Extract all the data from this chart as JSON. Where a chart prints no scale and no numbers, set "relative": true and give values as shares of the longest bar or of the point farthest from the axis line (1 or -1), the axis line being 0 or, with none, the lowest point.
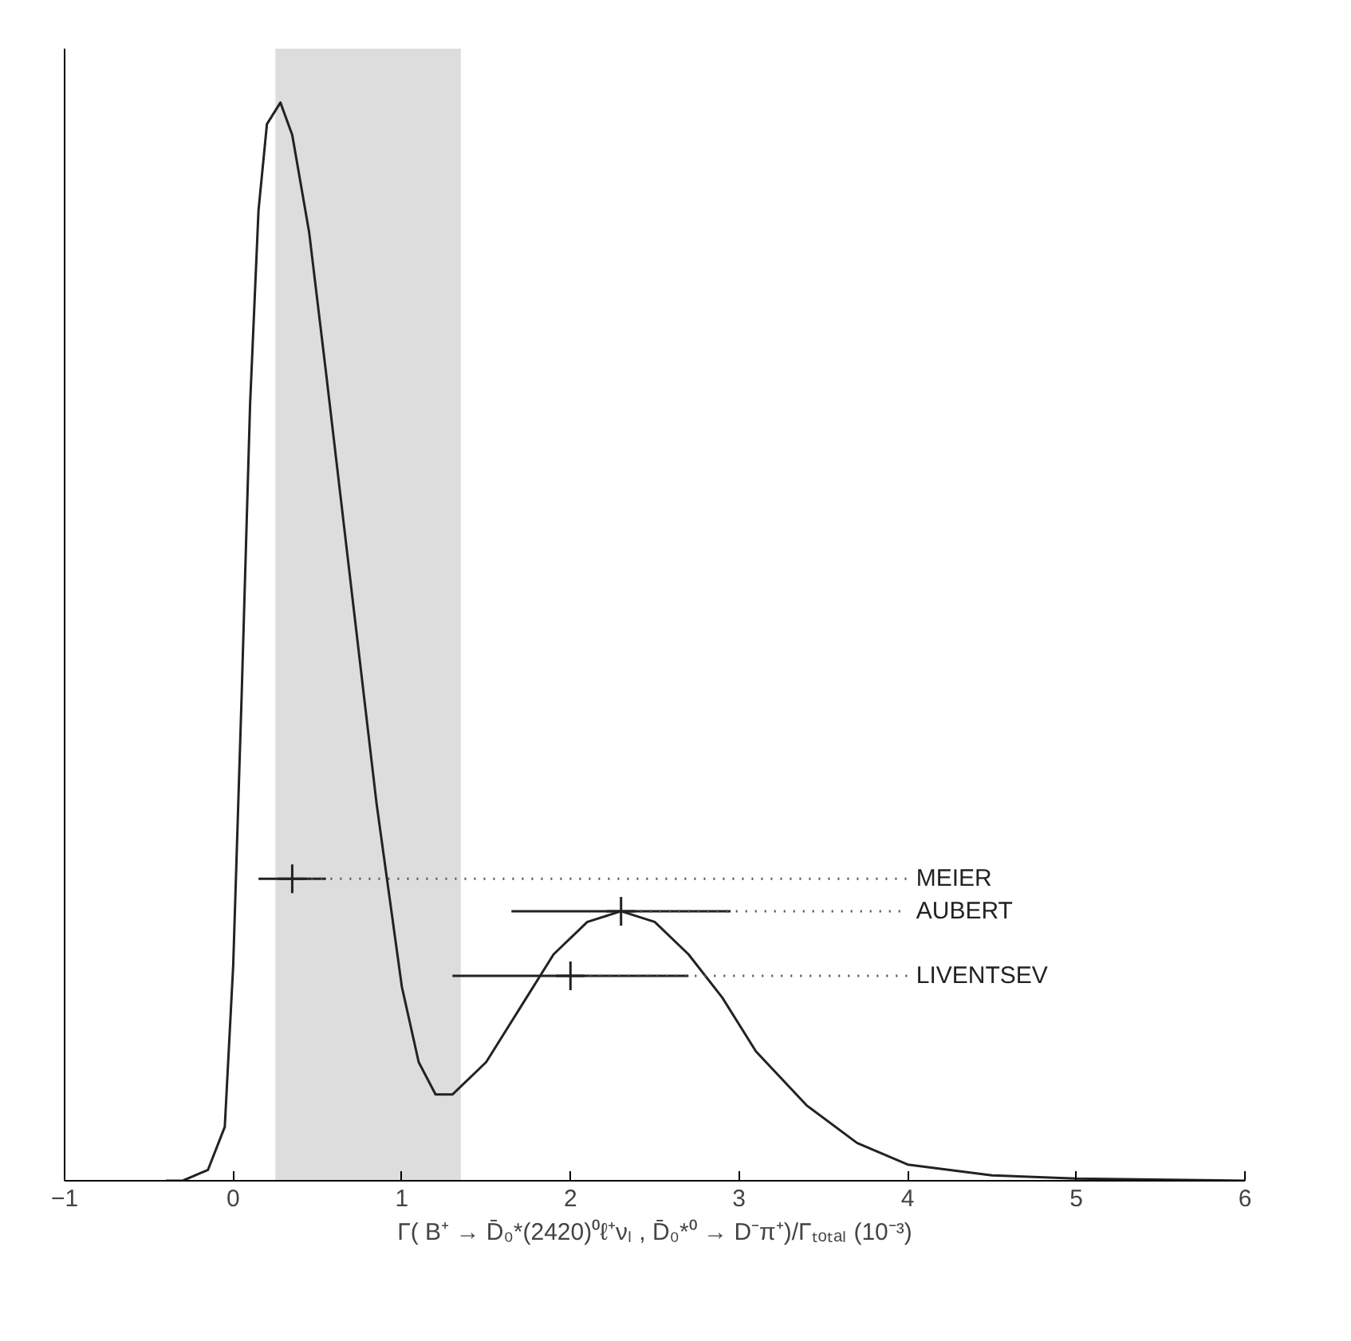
{
  "chart_data": {
    "type": "line",
    "xlabel": "Γ( B⁺ → D̄₀*(2420)⁰ℓ⁺νₗ , D̄₀*⁰ → D⁻π⁺)/Γₜₒₜₐₗ (10⁻³)",
    "relative": true,
    "xlim": [
      -1,
      6
    ],
    "xticks": [
      -1,
      0,
      1,
      2,
      3,
      4,
      5,
      6
    ],
    "grid": false,
    "legend": false,
    "tick_labels": "x",
    "series": [
      {
        "color": "#222222",
        "x": [
          -0.4,
          -0.3,
          -0.15,
          -0.05,
          0.0,
          0.05,
          0.1,
          0.15,
          0.2,
          0.28,
          0.35,
          0.45,
          0.55,
          0.7,
          0.85,
          1.0,
          1.1,
          1.2,
          1.3,
          1.5,
          1.7,
          1.9,
          2.1,
          2.3,
          2.5,
          2.7,
          2.9,
          3.1,
          3.4,
          3.7,
          4.0,
          4.5,
          5.0,
          6.0
        ],
        "values": [
          0,
          0,
          0.01,
          0.05,
          0.2,
          0.45,
          0.72,
          0.9,
          0.98,
          1.0,
          0.97,
          0.88,
          0.75,
          0.55,
          0.35,
          0.18,
          0.11,
          0.08,
          0.08,
          0.11,
          0.16,
          0.21,
          0.24,
          0.25,
          0.24,
          0.21,
          0.17,
          0.12,
          0.07,
          0.035,
          0.015,
          0.005,
          0.002,
          0
        ]
      },
      {
        "type": "scatter",
        "name": "MEIER",
        "color": "#222222",
        "x": [
          0.35
        ],
        "values": [
          0.28
        ],
        "xerrors": [
          0.2
        ],
        "marker": "cross"
      },
      {
        "type": "scatter",
        "name": "AUBERT",
        "color": "#222222",
        "x": [
          2.3
        ],
        "values": [
          0.25
        ],
        "xerrors": [
          0.65
        ],
        "marker": "cross"
      },
      {
        "type": "scatter",
        "name": "LIVENTSEV",
        "color": "#222222",
        "x": [
          2.0
        ],
        "values": [
          0.19
        ],
        "xerrors": [
          0.7
        ],
        "marker": "cross"
      }
    ],
    "bands": [
      {
        "axis": "x",
        "from": 0.25,
        "to": 1.35,
        "color": "#dddddd"
      }
    ]
  }
}
